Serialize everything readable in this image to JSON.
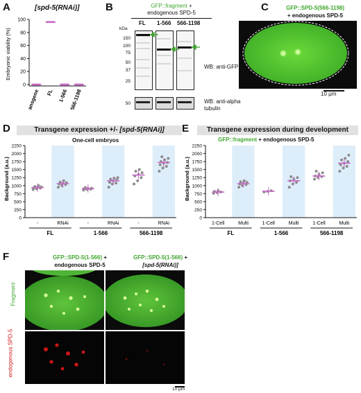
{
  "panels": {
    "A": {
      "letter": "A",
      "title": "[spd-5(RNAi)]",
      "ylabel": "Embryonic viability (%)",
      "yticks": [
        "0",
        "20",
        "40",
        "60",
        "80",
        "100"
      ],
      "categories": [
        "no transgene",
        "FL",
        "1-566",
        "566-1198"
      ]
    },
    "B": {
      "letter": "B",
      "title_green": "GFP::fragment",
      "title_plus": " +",
      "title_line2": "endogenous SPD-5",
      "kda": "kDa",
      "mw": [
        "150",
        "100",
        "75",
        "50",
        "37",
        "25"
      ],
      "mw_lower": "50",
      "lanes": [
        "FL",
        "1-566",
        "566-1198"
      ],
      "wb_gfp": "WB: anti-GFP",
      "wb_tub_1": "WB: anti-alpha",
      "wb_tub_2": "tubulin"
    },
    "C": {
      "letter": "C",
      "title_green": "GFP::SPD-5(566-1198)",
      "title_line2": "+ endogenous SPD-5",
      "scale": "10 μm"
    },
    "D": {
      "letter": "D",
      "banner_plain": "Transgene expression +/- ",
      "banner_ital": "[spd-5(RNAi)]",
      "subtitle": "One-cell embryos",
      "ylabel": "Background (a.u.)",
      "yticks": [
        "0",
        "250",
        "500",
        "750",
        "1000",
        "1250",
        "1500",
        "1750",
        "2000",
        "2250"
      ],
      "xticks": [
        "-",
        "RNAi",
        "-",
        "RNAi",
        "-",
        "RNAi"
      ],
      "groups": [
        "FL",
        "1-566",
        "566-1198"
      ]
    },
    "E": {
      "letter": "E",
      "banner": "Transgene expression during development",
      "subtitle_green": "GFP::fragment",
      "subtitle_rest": " + endogenous SPD-5",
      "ylabel": "Background (a.u.)",
      "yticks": [
        "0",
        "250",
        "500",
        "750",
        "1000",
        "1250",
        "1500",
        "1750",
        "2000",
        "2250"
      ],
      "xticks": [
        "1-Cell",
        "Multi",
        "1-Cell",
        "Multi",
        "1-Cell",
        "Multi"
      ],
      "groups": [
        "FL",
        "1-566",
        "566-1198"
      ]
    },
    "F": {
      "letter": "F",
      "col1_green": "GFP::SPD-5(1-566)",
      "col1_plus": " +",
      "col1_line2": "endogenous SPD-5",
      "col2_green": "GFP::SPD-5(1-566)",
      "col2_plus": " +",
      "col2_line2": "[spd-5(RNAi)]",
      "row1": "Fragment",
      "row2": "endogenous SPD-5",
      "scale": "10 μm"
    }
  },
  "colors": {
    "magenta": "#c86bc8",
    "gray": "#8c8c8c",
    "green": "#3fa52e",
    "shade": "#ddeefa"
  },
  "chart_data": [
    {
      "type": "scatter",
      "panel": "A",
      "title": "[spd-5(RNAi)]",
      "ylabel": "Embryonic viability (%)",
      "ylim": [
        0,
        100
      ],
      "categories": [
        "no transgene",
        "FL",
        "1-566",
        "566-1198"
      ],
      "series": [
        {
          "values": [
            0,
            96,
            0,
            0
          ]
        }
      ]
    },
    {
      "type": "scatter",
      "panel": "D",
      "subtitle": "One-cell embryos",
      "ylabel": "Background (a.u.)",
      "ylim": [
        0,
        2250
      ],
      "categories": [
        "-",
        "RNAi",
        "-",
        "RNAi",
        "-",
        "RNAi"
      ],
      "groups": [
        "FL",
        "1-566",
        "566-1198"
      ],
      "means": [
        940,
        1060,
        910,
        1150,
        1330,
        1720
      ],
      "points": [
        [
          880,
          900,
          920,
          930,
          950,
          960,
          970,
          1000
        ],
        [
          950,
          1000,
          1030,
          1050,
          1070,
          1090,
          1110,
          1150
        ],
        [
          860,
          880,
          890,
          900,
          910,
          920,
          940
        ],
        [
          950,
          1050,
          1080,
          1100,
          1150,
          1180,
          1200,
          1230,
          1250
        ],
        [
          1050,
          1150,
          1250,
          1300,
          1350,
          1400,
          1450,
          1500
        ],
        [
          1450,
          1550,
          1600,
          1650,
          1700,
          1720,
          1750,
          1800,
          1850,
          1900
        ]
      ]
    },
    {
      "type": "scatter",
      "panel": "E",
      "subtitle": "GFP::fragment + endogenous SPD-5",
      "ylabel": "Background (a.u.)",
      "ylim": [
        0,
        2250
      ],
      "categories": [
        "1-Cell",
        "Multi",
        "1-Cell",
        "Multi",
        "1-Cell",
        "Multi"
      ],
      "groups": [
        "FL",
        "1-566",
        "566-1198"
      ],
      "means": [
        800,
        1060,
        820,
        1150,
        1300,
        1700
      ],
      "points": [
        [
          760,
          780,
          800,
          820,
          840
        ],
        [
          950,
          1000,
          1030,
          1050,
          1080,
          1100,
          1120,
          1150
        ],
        [
          800,
          820,
          840
        ],
        [
          950,
          1050,
          1100,
          1150,
          1200,
          1250,
          1280
        ],
        [
          1200,
          1250,
          1280,
          1300,
          1350,
          1400,
          1450
        ],
        [
          1450,
          1550,
          1600,
          1650,
          1700,
          1750,
          1800,
          1850,
          1950
        ]
      ]
    }
  ]
}
